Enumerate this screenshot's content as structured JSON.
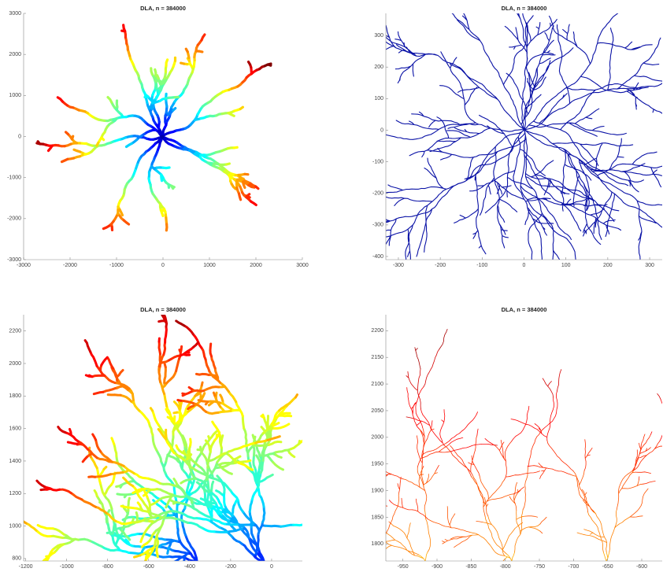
{
  "chart_data": [
    {
      "type": "fractal",
      "title": "DLA, n = 384000",
      "colormap": "jet",
      "xlim": [
        -3000,
        3000
      ],
      "ylim": [
        -3000,
        3000
      ],
      "xticks": [
        -3000,
        -2000,
        -1000,
        0,
        1000,
        2000,
        3000
      ],
      "yticks": [
        -3000,
        -2000,
        -1000,
        0,
        1000,
        2000,
        3000
      ]
    },
    {
      "type": "fractal",
      "title": "DLA, n = 384000",
      "color": "#0a12a6",
      "xlim": [
        -330,
        330
      ],
      "ylim": [
        -410,
        370
      ],
      "xticks": [
        -300,
        -200,
        -100,
        0,
        100,
        200,
        300
      ],
      "yticks": [
        -400,
        -300,
        -200,
        -100,
        0,
        100,
        200,
        300
      ]
    },
    {
      "type": "fractal",
      "title": "DLA, n = 384000",
      "colormap": "jet",
      "xlim": [
        -1210,
        150
      ],
      "ylim": [
        785,
        2300
      ],
      "xticks": [
        -1200,
        -1000,
        -800,
        -600,
        -400,
        -200,
        0
      ],
      "yticks": [
        800,
        1000,
        1200,
        1400,
        1600,
        1800,
        2000,
        2200
      ]
    },
    {
      "type": "fractal",
      "title": "DLA, n = 384000",
      "colormap": "jet",
      "xlim": [
        -975,
        -570
      ],
      "ylim": [
        1768,
        2230
      ],
      "xticks": [
        -950,
        -900,
        -850,
        -800,
        -750,
        -700,
        -650,
        -600
      ],
      "yticks": [
        1800,
        1850,
        1900,
        1950,
        2000,
        2050,
        2100,
        2150,
        2200
      ]
    }
  ]
}
